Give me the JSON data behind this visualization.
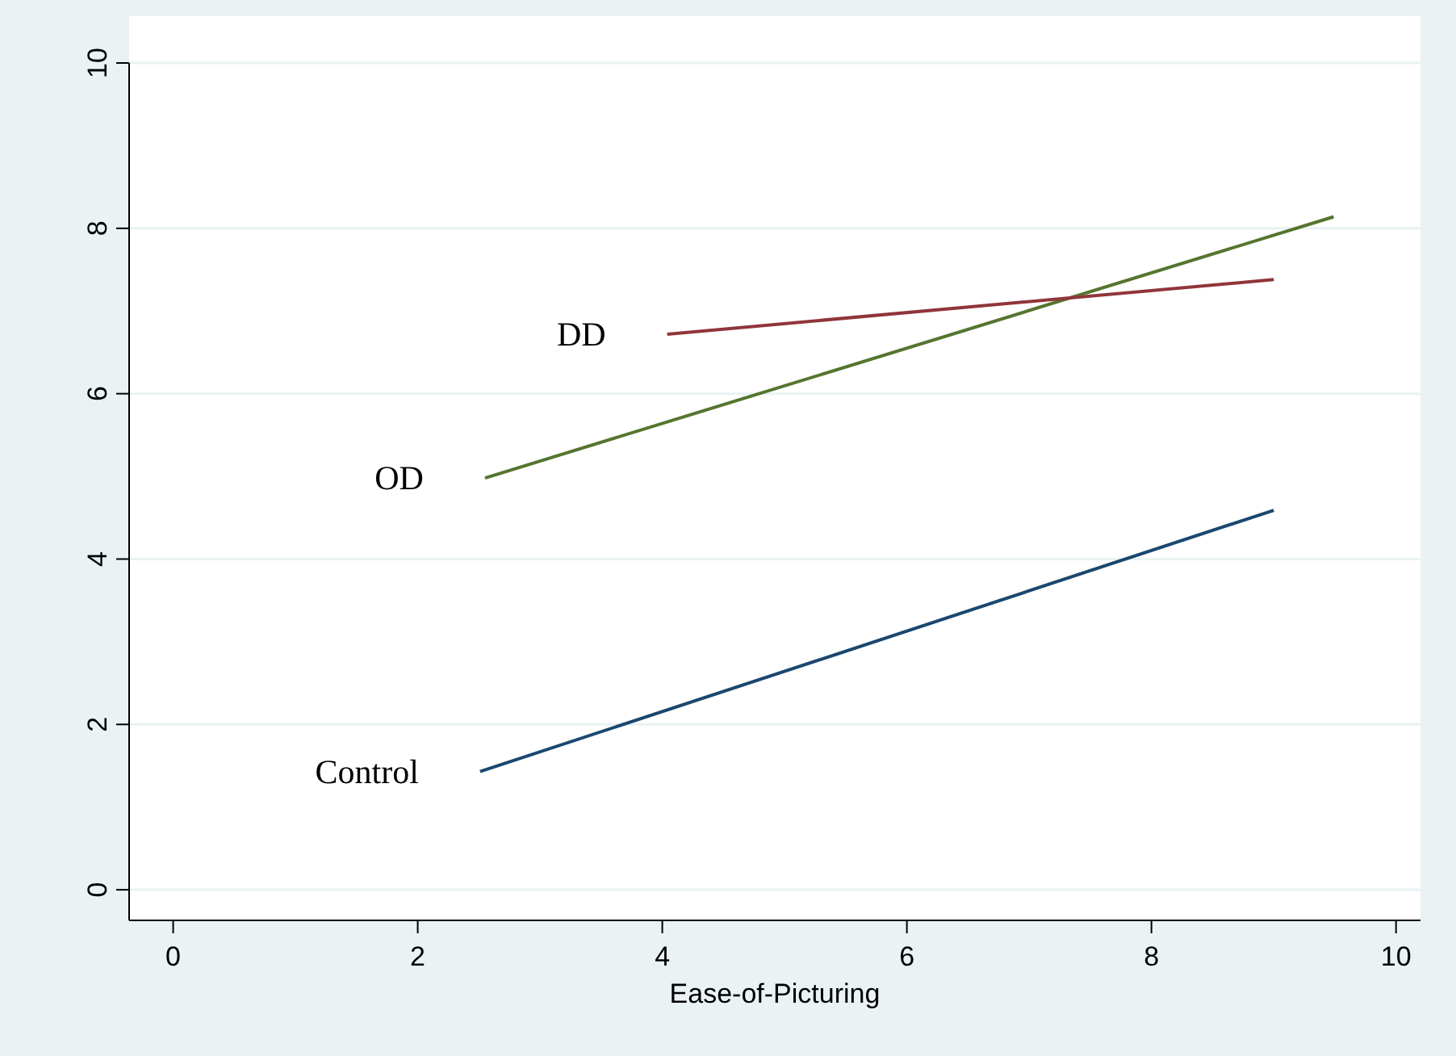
{
  "chart_data": {
    "type": "line",
    "xlabel": "Ease-of-Picturing",
    "xlim": [
      -0.36,
      10.2
    ],
    "ylim": [
      -0.37,
      10
    ],
    "xticks": [
      0,
      2,
      4,
      6,
      8,
      10
    ],
    "yticks": [
      0,
      2,
      4,
      6,
      8,
      10
    ],
    "grid": "y",
    "series": [
      {
        "name": "Control",
        "color": "#1a476f",
        "x": [
          2.51,
          9.0
        ],
        "values": [
          1.43,
          4.59
        ]
      },
      {
        "name": "OD",
        "color": "#55752f",
        "x": [
          2.55,
          9.49
        ],
        "values": [
          4.98,
          8.14
        ]
      },
      {
        "name": "DD",
        "color": "#90353b",
        "x": [
          4.04,
          9.0
        ],
        "values": [
          6.72,
          7.38
        ]
      }
    ]
  }
}
